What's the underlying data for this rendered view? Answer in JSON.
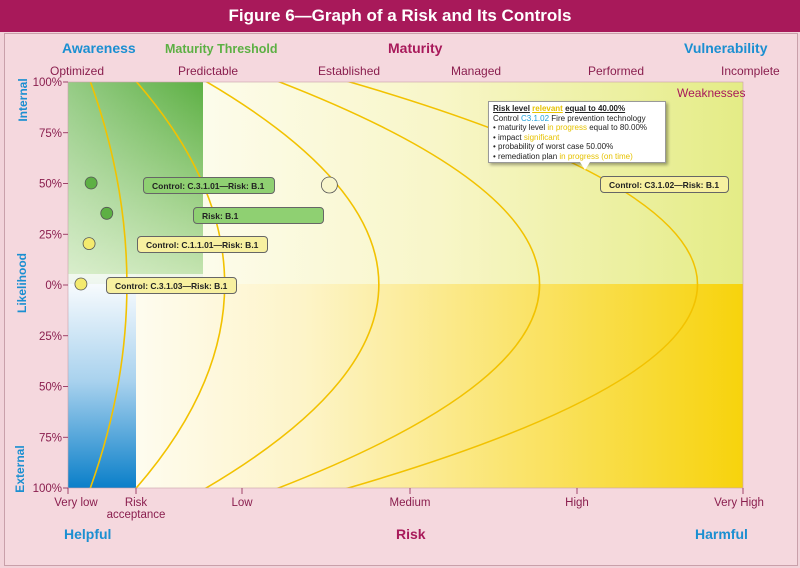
{
  "title": "Figure 6—Graph of a Risk and Its Controls",
  "top_headers": {
    "awareness": "Awareness",
    "maturity_threshold": "Maturity Threshold",
    "maturity": "Maturity",
    "vulnerability": "Vulnerability"
  },
  "maturity_levels": [
    "Optimized",
    "Predictable",
    "Established",
    "Managed",
    "Performed",
    "Incomplete"
  ],
  "weaknesses_label": "Weaknesses",
  "y_axis": {
    "internal": "Internal",
    "likelihood": "Likelihood",
    "external": "External",
    "ticks": [
      "100%",
      "75%",
      "50%",
      "25%",
      "0%",
      "25%",
      "50%",
      "75%",
      "100%"
    ]
  },
  "x_axis": {
    "ticks": [
      "Very low",
      "Risk\nacceptance",
      "Low",
      "Medium",
      "High",
      "Very High"
    ],
    "tick_lines": [
      [
        "Very low"
      ],
      [
        "Risk",
        "acceptance"
      ],
      [
        "Low"
      ],
      [
        "Medium"
      ],
      [
        "High"
      ],
      [
        "Very High"
      ]
    ]
  },
  "bottom_headers": {
    "helpful": "Helpful",
    "risk": "Risk",
    "harmful": "Harmful"
  },
  "controls": [
    {
      "label": "Control: C.3.1.01—Risk: B.1",
      "style": "green",
      "impact": 0.34,
      "likelihood": 0.5
    },
    {
      "label": "Risk: B.1",
      "style": "green",
      "impact": 0.57,
      "likelihood": 0.35
    },
    {
      "label": "Control: C.1.1.01—Risk: B.1",
      "style": "yellow",
      "impact": 0.31,
      "likelihood": 0.2
    },
    {
      "label": "Control: C.3.1.03—Risk: B.1",
      "style": "yellow",
      "impact": 0.19,
      "likelihood": 0.0
    },
    {
      "label": "Control: C3.1.02—Risk: B.1",
      "style": "white",
      "impact": 2.52,
      "likelihood": 0.49
    }
  ],
  "callout": {
    "title": "Risk level",
    "title_value": "relevant",
    "title_suffix": "equal to 40.00%",
    "control_prefix": "Control",
    "control_id": "C3.1.02",
    "control_name": "Fire prevention technology",
    "maturity_prefix": "• maturity level",
    "maturity_value": "in progress",
    "maturity_suffix": "equal to 80.00%",
    "impact_prefix": "• impact",
    "impact_value": "significant",
    "probability": "• probability of worst case 50.00%",
    "remediation_prefix": "• remediation plan",
    "remediation_value": "in progress (on time)"
  },
  "colors": {
    "title_bar": "#a8195a",
    "background": "#f2d3da",
    "threshold_green": "#5db044",
    "helpful_blue": "#1b8fd1",
    "harmful_yellow": "#f6d40f",
    "curve": "#f2c200"
  }
}
